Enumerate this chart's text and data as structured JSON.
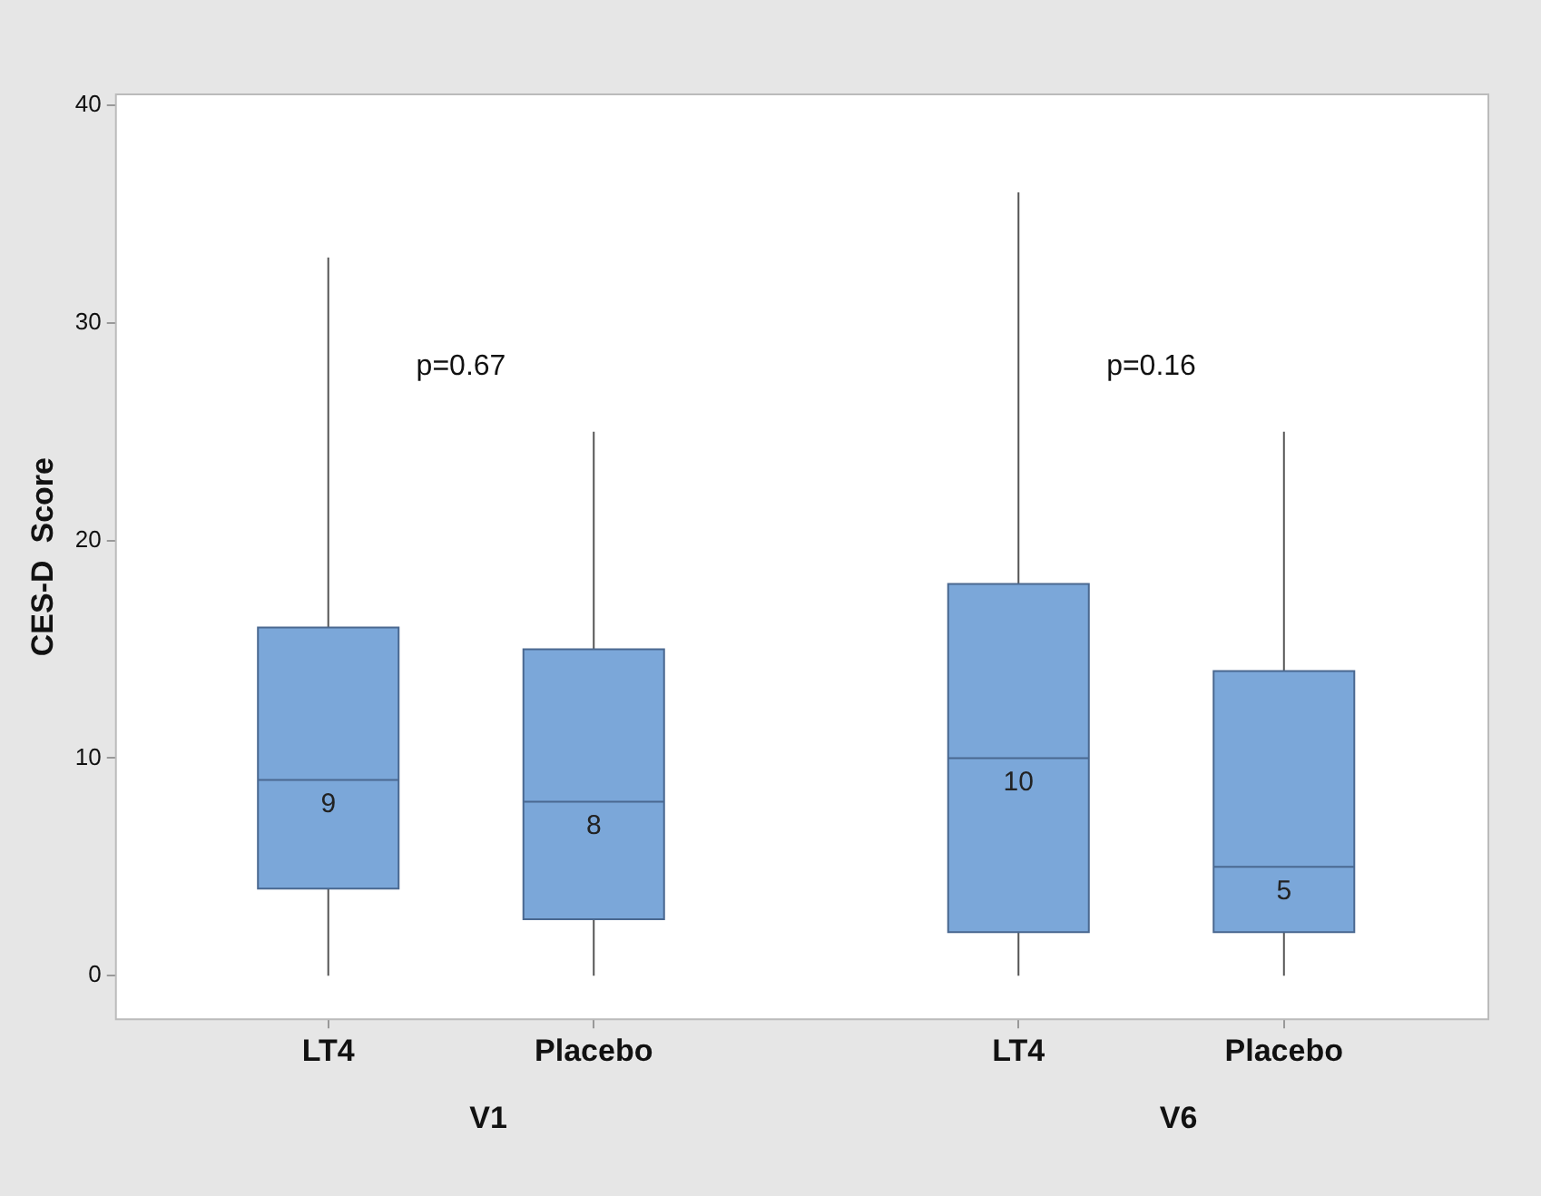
{
  "chart_data": {
    "type": "box",
    "ylabel": "CES-D  Score",
    "categories": [
      "LT4",
      "Placebo",
      "LT4",
      "Placebo"
    ],
    "color": "#7ba7d9",
    "ylim": [
      -2,
      40.5
    ],
    "yticks": [
      0,
      10,
      20,
      30,
      40
    ],
    "grid": false,
    "value_labels": [
      "9",
      "8",
      "10",
      "5"
    ],
    "boxes": [
      {
        "low": 0,
        "q1": 4,
        "median": 9,
        "q3": 16,
        "high": 33
      },
      {
        "low": 0,
        "q1": 2.6,
        "median": 8,
        "q3": 15,
        "high": 25
      },
      {
        "low": 0,
        "q1": 2,
        "median": 10,
        "q3": 18,
        "high": 36
      },
      {
        "low": 0,
        "q1": 2,
        "median": 5,
        "q3": 14,
        "high": 25
      }
    ],
    "annotations": [
      "p=0.67",
      "p=0.16",
      "V1",
      "V6"
    ]
  }
}
